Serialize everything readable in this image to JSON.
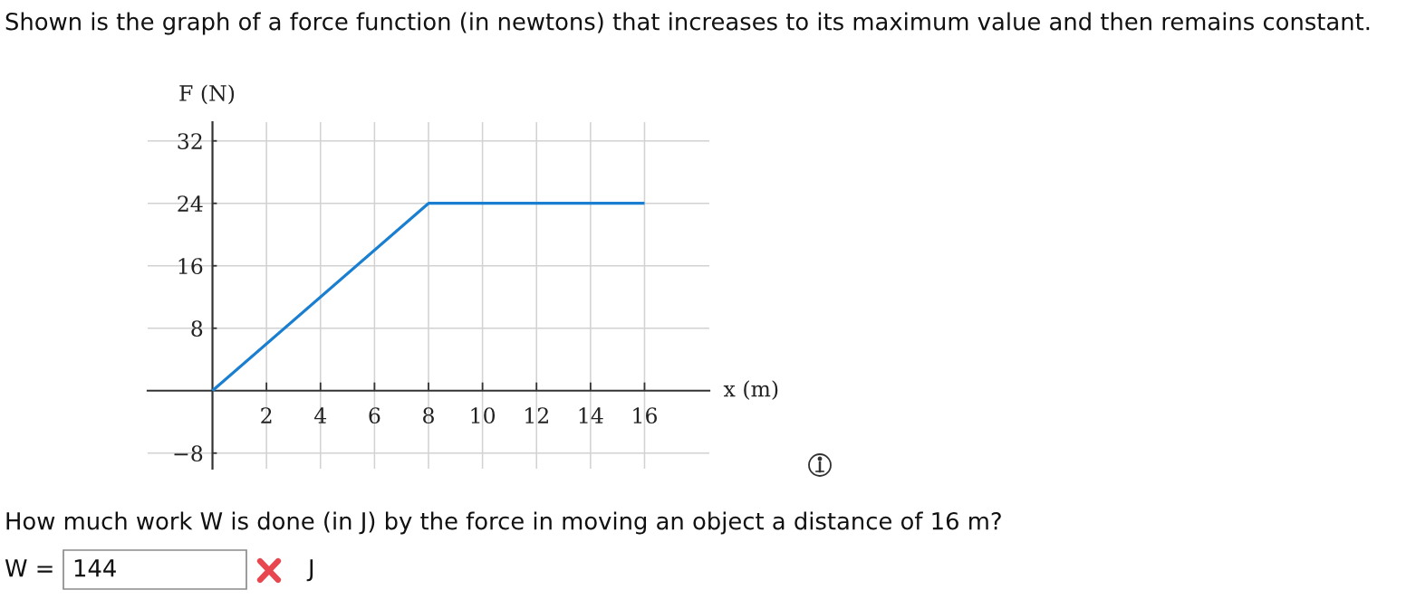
{
  "chart_data": {
    "type": "line",
    "title": "Shown is the graph of a force function (in newtons) that increases to its maximum value and then remains constant.",
    "xlabel": "x (m)",
    "ylabel": "F (N)",
    "annotations": [
      "How much work W is done (in J) by the force in moving an object a distance of 16 m?",
      "W =",
      "144",
      "J"
    ],
    "x": [
      0,
      8,
      16
    ],
    "series": [
      {
        "color": "#1a7fd0",
        "values": [
          0,
          24,
          24
        ]
      }
    ],
    "xlim": [
      -2.4,
      18.4
    ],
    "ylim": [
      -10,
      34.4
    ],
    "xticks": [
      2,
      4,
      6,
      8,
      10,
      12,
      14,
      16
    ],
    "yticks": [
      {
        "value": -8,
        "label": "−8"
      },
      8,
      16,
      24,
      32
    ],
    "grid": true,
    "line_style": "solid"
  }
}
